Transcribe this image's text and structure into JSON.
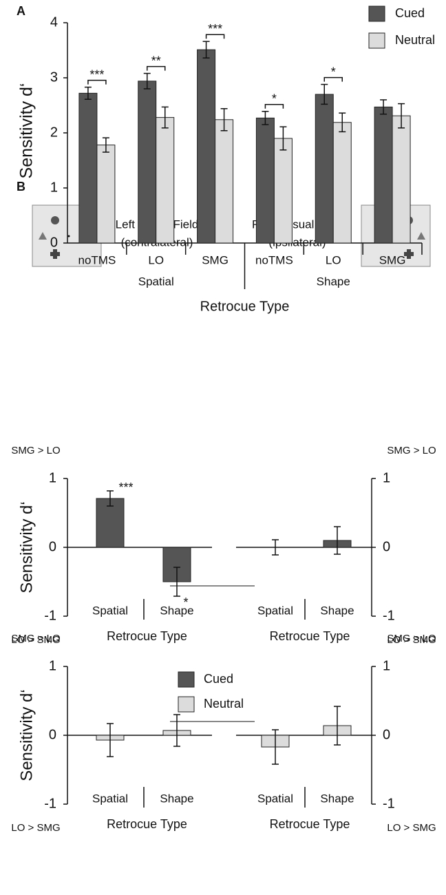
{
  "chart_data": [
    {
      "type": "bar",
      "label": "A",
      "ylabel": "Sensitivity d‘",
      "xlabel": "Retrocue Type",
      "categories": [
        "noTMS",
        "LO",
        "SMG",
        "noTMS",
        "LO",
        "SMG"
      ],
      "groups": [
        "Spatial",
        "Shape"
      ],
      "series": [
        {
          "name": "Cued",
          "color": "#555555",
          "values": [
            2.72,
            2.94,
            3.51,
            2.27,
            2.7,
            2.47
          ],
          "errors": [
            0.11,
            0.14,
            0.15,
            0.12,
            0.18,
            0.13
          ]
        },
        {
          "name": "Neutral",
          "color": "#dcdcdc",
          "values": [
            1.78,
            2.28,
            2.24,
            1.9,
            2.19,
            2.31
          ],
          "errors": [
            0.13,
            0.19,
            0.2,
            0.21,
            0.17,
            0.22
          ]
        }
      ],
      "annotations": [
        "***",
        "**",
        "***",
        "*",
        "*",
        null
      ],
      "ylim": [
        0,
        4
      ],
      "yticks": [
        0,
        1,
        2,
        3,
        4
      ],
      "legend": "top-right"
    },
    {
      "type": "bar",
      "ylabel": "Sensitivity d‘",
      "xlabel": "Retrocue Type",
      "top_label": "SMG > LO",
      "bottom_label": "LO > SMG",
      "categories": [
        "Spatial",
        "Shape"
      ],
      "series": [
        {
          "name": "Cued",
          "color": "#555555",
          "values": [
            0.71,
            -0.5
          ],
          "errors": [
            0.11,
            0.21
          ]
        }
      ],
      "annotations": [
        "***",
        "*"
      ],
      "ylim": [
        -1,
        1
      ],
      "yticks": [
        -1,
        0,
        1
      ]
    },
    {
      "type": "bar",
      "xlabel": "Retrocue Type",
      "top_label": "SMG > LO",
      "bottom_label": "LO > SMG",
      "categories": [
        "Spatial",
        "Shape"
      ],
      "series": [
        {
          "name": "Cued",
          "color": "#555555",
          "values": [
            0.0,
            0.1
          ],
          "errors": [
            0.11,
            0.2
          ]
        }
      ],
      "ylim": [
        -1,
        1
      ],
      "yticks": [
        -1,
        0,
        1
      ]
    },
    {
      "type": "bar",
      "ylabel": "Sensitivity d‘",
      "xlabel": "Retrocue Type",
      "top_label": "SMG > LO",
      "bottom_label": "LO > SMG",
      "categories": [
        "Spatial",
        "Shape"
      ],
      "series": [
        {
          "name": "Neutral",
          "color": "#dcdcdc",
          "values": [
            -0.07,
            0.07
          ],
          "errors": [
            0.24,
            0.23
          ]
        }
      ],
      "ylim": [
        -1,
        1
      ],
      "yticks": [
        -1,
        0,
        1
      ]
    },
    {
      "type": "bar",
      "xlabel": "Retrocue Type",
      "top_label": "SMG > LO",
      "bottom_label": "LO > SMG",
      "categories": [
        "Spatial",
        "Shape"
      ],
      "series": [
        {
          "name": "Neutral",
          "color": "#dcdcdc",
          "values": [
            -0.17,
            0.14
          ],
          "errors": [
            0.25,
            0.28
          ]
        }
      ],
      "ylim": [
        -1,
        1
      ],
      "yticks": [
        -1,
        0,
        1
      ]
    }
  ],
  "panel_b": {
    "label": "B",
    "left_field": "Left Visual Field",
    "left_side": "(contralateral)",
    "right_field": "Right Visual Field",
    "right_side": "(ipsilateral)"
  }
}
